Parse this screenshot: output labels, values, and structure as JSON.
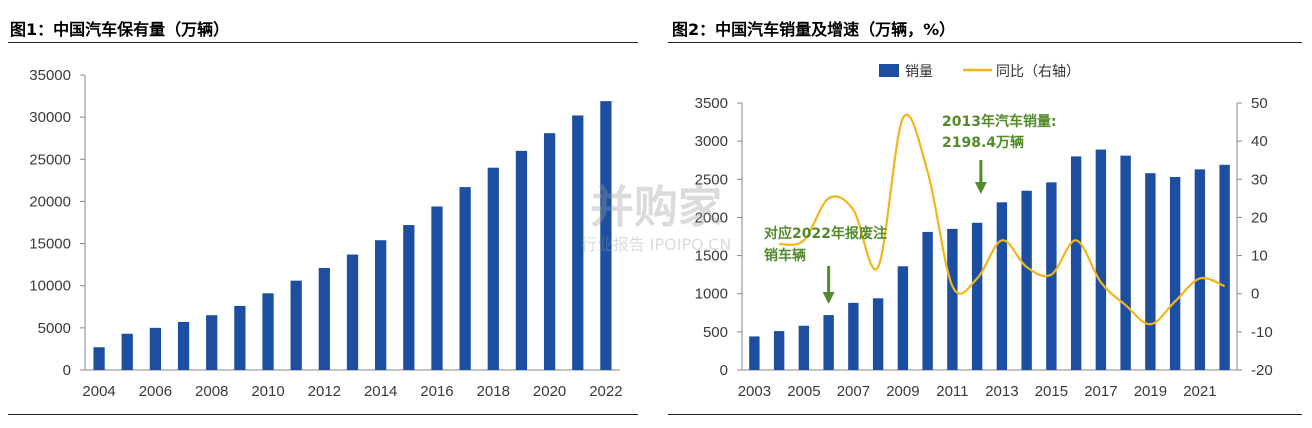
{
  "figures": [
    {
      "title": "图1：中国汽车保有量（万辆）"
    },
    {
      "title": "图2：中国汽车销量及增速（万辆，%）",
      "legend": {
        "bar_label": "销量",
        "line_label": "同比（右轴）"
      },
      "annotations": [
        {
          "lines": [
            "2013年汽车销量:",
            "2198.4万辆"
          ]
        },
        {
          "lines": [
            "对应2022年报废注",
            "销车辆"
          ]
        }
      ]
    }
  ],
  "watermark": {
    "main": "并购家",
    "sub": "行业报告 IPOIPO.CN"
  },
  "colors": {
    "bar": "#1c4fa1",
    "line": "#f2b51a",
    "annotation": "#538a2c",
    "rule": "#222222"
  },
  "chart_data": [
    {
      "type": "bar",
      "categories": [
        "2004",
        "2005",
        "2006",
        "2007",
        "2008",
        "2009",
        "2010",
        "2011",
        "2012",
        "2013",
        "2014",
        "2015",
        "2016",
        "2017",
        "2018",
        "2019",
        "2020",
        "2021",
        "2022"
      ],
      "x_tick_labels": [
        "2004",
        "2006",
        "2008",
        "2010",
        "2012",
        "2014",
        "2016",
        "2018",
        "2020",
        "2022"
      ],
      "values": [
        2700,
        4300,
        5000,
        5700,
        6500,
        7600,
        9100,
        10600,
        12100,
        13700,
        15400,
        17200,
        19400,
        21700,
        24000,
        26000,
        28100,
        30200,
        31900
      ],
      "ylim": [
        0,
        35000
      ],
      "yticks": [
        "0",
        "5000",
        "10000",
        "15000",
        "20000",
        "25000",
        "30000",
        "35000"
      ],
      "xlabel": "",
      "ylabel": "",
      "grid": false
    },
    {
      "type": "bar+line",
      "categories": [
        "2003",
        "2004",
        "2005",
        "2006",
        "2007",
        "2008",
        "2009",
        "2010",
        "2011",
        "2012",
        "2013",
        "2014",
        "2015",
        "2016",
        "2017",
        "2018",
        "2019",
        "2020",
        "2021",
        "2022"
      ],
      "x_tick_labels": [
        "2003",
        "2005",
        "2007",
        "2009",
        "2011",
        "2013",
        "2015",
        "2017",
        "2019",
        "2021"
      ],
      "series": [
        {
          "name": "销量",
          "type": "bar",
          "axis": "left",
          "values": [
            440,
            510,
            580,
            720,
            880,
            940,
            1360,
            1810,
            1850,
            1930,
            2198.4,
            2350,
            2460,
            2800,
            2890,
            2810,
            2580,
            2530,
            2630,
            2690
          ]
        },
        {
          "name": "同比（右轴）",
          "type": "line",
          "axis": "right",
          "values": [
            null,
            13,
            14,
            25,
            22,
            7,
            46,
            32,
            2,
            4,
            14,
            7,
            5,
            14,
            3,
            -3,
            -8,
            -2,
            4,
            2
          ]
        }
      ],
      "ylim_left": [
        0,
        3500
      ],
      "yticks_left": [
        "0",
        "500",
        "1000",
        "1500",
        "2000",
        "2500",
        "3000",
        "3500"
      ],
      "ylim_right": [
        -20,
        50
      ],
      "yticks_right": [
        "-20",
        "-10",
        "0",
        "10",
        "20",
        "30",
        "40",
        "50"
      ],
      "arrows_at": [
        "2013",
        "2006"
      ],
      "legend_position": "top",
      "grid": false
    }
  ]
}
